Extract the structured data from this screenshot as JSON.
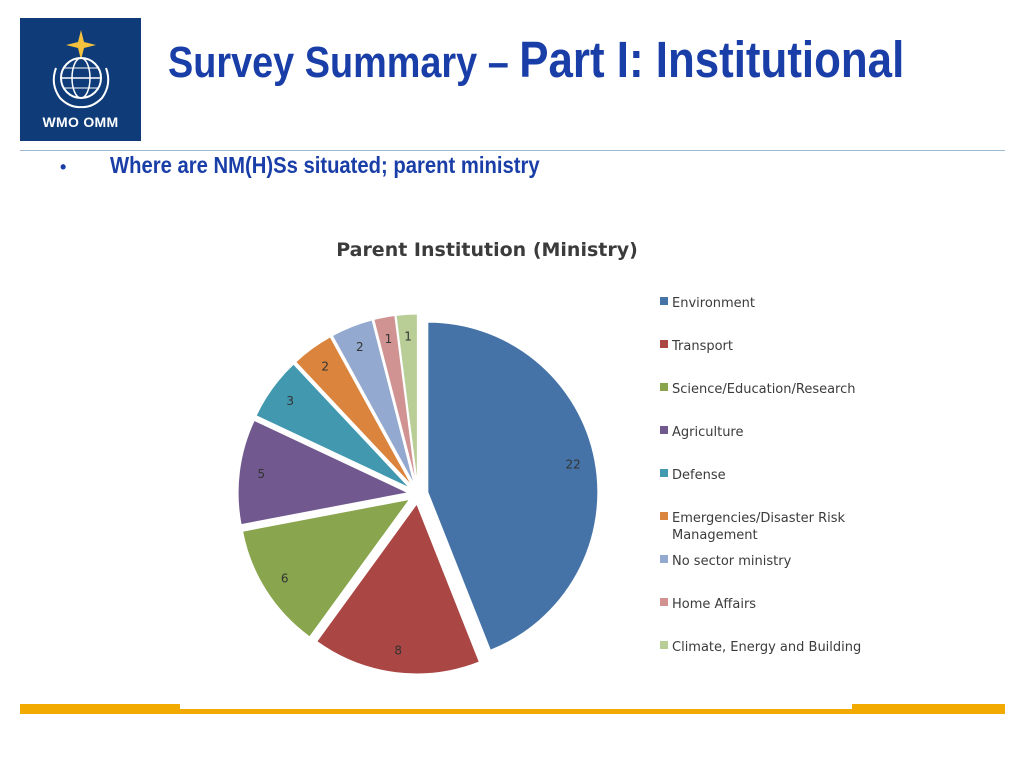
{
  "logo": {
    "text": "WMO OMM",
    "background": "#0f3c78"
  },
  "title": {
    "part1": "Survey Summary – ",
    "part2": "Part I: Institutional",
    "color": "#1a3ea8"
  },
  "bullet": {
    "marker": "•",
    "text": "Where are NM(H)Ss situated; parent ministry"
  },
  "accent_color": "#f2a900",
  "chart_data": {
    "type": "pie",
    "title": "Parent Institution (Ministry)",
    "categories": [
      "Environment",
      "Transport",
      "Science/Education/Research",
      "Agriculture",
      "Defense",
      "Emergencies/Disaster Risk Management",
      "No sector ministry",
      "Home Affairs",
      "Climate, Energy and Building"
    ],
    "legend_lines": [
      [
        "Environment"
      ],
      [
        "Transport"
      ],
      [
        "Science/Education/Research"
      ],
      [
        "Agriculture"
      ],
      [
        "Defense"
      ],
      [
        "Emergencies/Disaster Risk",
        "Management"
      ],
      [
        "No sector ministry"
      ],
      [
        "Home Affairs"
      ],
      [
        "Climate, Energy and Building"
      ]
    ],
    "values": [
      22,
      8,
      6,
      5,
      3,
      2,
      2,
      1,
      1
    ],
    "value_labels": [
      "22",
      "8",
      "6",
      "5",
      "3",
      "2",
      "2",
      "1",
      "1"
    ],
    "colors": [
      "#4573a7",
      "#aa4643",
      "#89a54e",
      "#71588f",
      "#4198af",
      "#db843d",
      "#93a9cf",
      "#d19392",
      "#b9cd96"
    ],
    "exploded": true,
    "legend_position": "right"
  }
}
